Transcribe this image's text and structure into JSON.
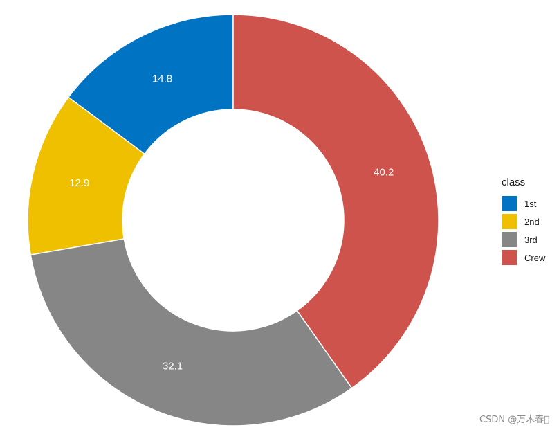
{
  "chart_data": {
    "type": "pie",
    "variant": "donut",
    "categories": [
      "1st",
      "2nd",
      "3rd",
      "Crew"
    ],
    "values": [
      14.8,
      12.9,
      32.1,
      40.2
    ],
    "data_labels": [
      "14.8",
      "12.9",
      "32.1",
      "40.2"
    ],
    "colors": [
      "#0073C2",
      "#EFC000",
      "#868686",
      "#CD534C"
    ],
    "legend": {
      "title": "class",
      "placement": "right"
    },
    "title": "",
    "xlabel": "",
    "ylabel": ""
  },
  "watermark": "CSDN @万木春\u0000"
}
